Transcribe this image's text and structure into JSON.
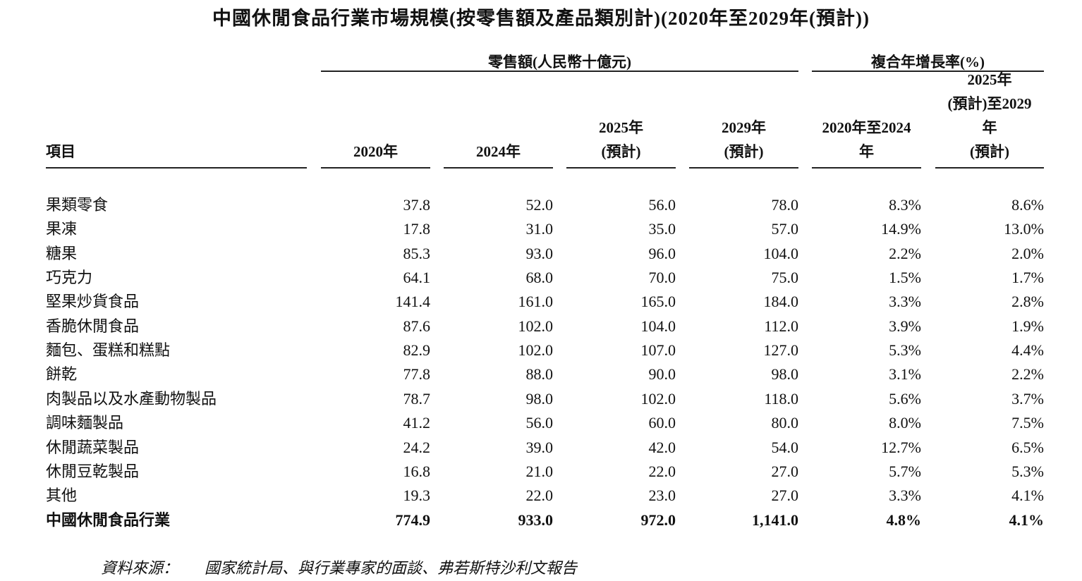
{
  "title": "中國休閒食品行業市場規模(按零售額及產品類別計)(2020年至2029年(預計))",
  "groups": [
    "零售額(人民幣十億元)",
    "複合年增長率(%)"
  ],
  "columns": [
    [
      "項目"
    ],
    [
      "2020年"
    ],
    [
      "2024年"
    ],
    [
      "2025年",
      "(預計)"
    ],
    [
      "2029年",
      "(預計)"
    ],
    [
      "2020年至2024",
      "年"
    ],
    [
      "2025年",
      "(預計)至2029",
      "年",
      "(預計)"
    ]
  ],
  "rows": [
    [
      "果類零食",
      "37.8",
      "52.0",
      "56.0",
      "78.0",
      "8.3%",
      "8.6%"
    ],
    [
      "果凍",
      "17.8",
      "31.0",
      "35.0",
      "57.0",
      "14.9%",
      "13.0%"
    ],
    [
      "糖果",
      "85.3",
      "93.0",
      "96.0",
      "104.0",
      "2.2%",
      "2.0%"
    ],
    [
      "巧克力",
      "64.1",
      "68.0",
      "70.0",
      "75.0",
      "1.5%",
      "1.7%"
    ],
    [
      "堅果炒貨食品",
      "141.4",
      "161.0",
      "165.0",
      "184.0",
      "3.3%",
      "2.8%"
    ],
    [
      "香脆休閒食品",
      "87.6",
      "102.0",
      "104.0",
      "112.0",
      "3.9%",
      "1.9%"
    ],
    [
      "麵包、蛋糕和糕點",
      "82.9",
      "102.0",
      "107.0",
      "127.0",
      "5.3%",
      "4.4%"
    ],
    [
      "餅乾",
      "77.8",
      "88.0",
      "90.0",
      "98.0",
      "3.1%",
      "2.2%"
    ],
    [
      "肉製品以及水產動物製品",
      "78.7",
      "98.0",
      "102.0",
      "118.0",
      "5.6%",
      "3.7%"
    ],
    [
      "調味麵製品",
      "41.2",
      "56.0",
      "60.0",
      "80.0",
      "8.0%",
      "7.5%"
    ],
    [
      "休閒蔬菜製品",
      "24.2",
      "39.0",
      "42.0",
      "54.0",
      "12.7%",
      "6.5%"
    ],
    [
      "休閒豆乾製品",
      "16.8",
      "21.0",
      "22.0",
      "27.0",
      "5.7%",
      "5.3%"
    ],
    [
      "其他",
      "19.3",
      "22.0",
      "23.0",
      "27.0",
      "3.3%",
      "4.1%"
    ]
  ],
  "total": [
    "中國休閒食品行業",
    "774.9",
    "933.0",
    "972.0",
    "1,141.0",
    "4.8%",
    "4.1%"
  ],
  "source": {
    "label": "資料來源：",
    "text": "國家統計局、與行業專家的面談、弗若斯特沙利文報告"
  }
}
